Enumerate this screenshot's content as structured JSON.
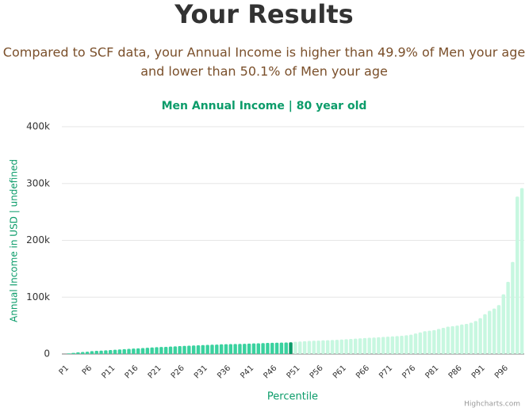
{
  "header": {
    "title": "Your Results",
    "subtitle_line1": "Compared to SCF data, your Annual Income is higher than 49.9% of Men your age",
    "subtitle_line2": "and lower than 50.1% of Men your age"
  },
  "chart_data": {
    "type": "bar",
    "title": "Men Annual Income | 80 year old",
    "x_label": "Percentile",
    "y_label": "Annual Income in USD | undefined",
    "credits": "Highcharts.com",
    "categories": [
      "P1",
      null,
      null,
      null,
      null,
      "P6",
      null,
      null,
      null,
      null,
      "P11",
      null,
      null,
      null,
      null,
      "P16",
      null,
      null,
      null,
      null,
      "P21",
      null,
      null,
      null,
      null,
      "P26",
      null,
      null,
      null,
      null,
      "P31",
      null,
      null,
      null,
      null,
      "P36",
      null,
      null,
      null,
      null,
      "P41",
      null,
      null,
      null,
      null,
      "P46",
      null,
      null,
      null,
      null,
      "P51",
      null,
      null,
      null,
      null,
      "P56",
      null,
      null,
      null,
      null,
      "P61",
      null,
      null,
      null,
      null,
      "P66",
      null,
      null,
      null,
      null,
      "P71",
      null,
      null,
      null,
      null,
      "P76",
      null,
      null,
      null,
      null,
      "P81",
      null,
      null,
      null,
      null,
      "P86",
      null,
      null,
      null,
      null,
      "P91",
      null,
      null,
      null,
      null,
      "P96",
      null,
      null,
      null,
      null
    ],
    "values": [
      0,
      1000,
      2000,
      3000,
      3500,
      4000,
      5000,
      5500,
      6000,
      6500,
      7000,
      7500,
      8000,
      8500,
      9000,
      9500,
      10000,
      10500,
      11000,
      11500,
      12000,
      12300,
      12600,
      13000,
      13500,
      14000,
      14300,
      14600,
      15000,
      15300,
      15600,
      16000,
      16300,
      16600,
      17000,
      17200,
      17400,
      17600,
      17800,
      18000,
      18300,
      18600,
      18900,
      19200,
      19500,
      19700,
      19900,
      20000,
      20200,
      20500,
      21500,
      22000,
      22500,
      23000,
      23300,
      23600,
      24000,
      24300,
      24600,
      25000,
      25500,
      26000,
      26500,
      27000,
      27500,
      28000,
      28500,
      29000,
      29500,
      30000,
      30500,
      31000,
      31500,
      32000,
      33000,
      34000,
      36000,
      38000,
      40000,
      41000,
      42000,
      44000,
      46000,
      48000,
      49000,
      50000,
      52000,
      53000,
      55000,
      58000,
      63000,
      70000,
      76000,
      80000,
      86000,
      105000,
      127000,
      162000,
      277000,
      292000
    ],
    "colors": [
      "#3ad29f",
      "#3ad29f",
      "#3ad29f",
      "#3ad29f",
      "#3ad29f",
      "#3ad29f",
      "#3ad29f",
      "#3ad29f",
      "#3ad29f",
      "#3ad29f",
      "#3ad29f",
      "#3ad29f",
      "#3ad29f",
      "#3ad29f",
      "#3ad29f",
      "#3ad29f",
      "#3ad29f",
      "#3ad29f",
      "#3ad29f",
      "#3ad29f",
      "#3ad29f",
      "#3ad29f",
      "#3ad29f",
      "#3ad29f",
      "#3ad29f",
      "#3ad29f",
      "#3ad29f",
      "#3ad29f",
      "#3ad29f",
      "#3ad29f",
      "#3ad29f",
      "#3ad29f",
      "#3ad29f",
      "#3ad29f",
      "#3ad29f",
      "#3ad29f",
      "#3ad29f",
      "#3ad29f",
      "#3ad29f",
      "#3ad29f",
      "#3ad29f",
      "#3ad29f",
      "#3ad29f",
      "#3ad29f",
      "#3ad29f",
      "#3ad29f",
      "#3ad29f",
      "#3ad29f",
      "#3ad29f",
      "#0c9c6a",
      "#c7f7e0",
      "#c7f7e0",
      "#c7f7e0",
      "#c7f7e0",
      "#c7f7e0",
      "#c7f7e0",
      "#c7f7e0",
      "#c7f7e0",
      "#c7f7e0",
      "#c7f7e0",
      "#c7f7e0",
      "#c7f7e0",
      "#c7f7e0",
      "#c7f7e0",
      "#c7f7e0",
      "#c7f7e0",
      "#c7f7e0",
      "#c7f7e0",
      "#c7f7e0",
      "#c7f7e0",
      "#c7f7e0",
      "#c7f7e0",
      "#c7f7e0",
      "#c7f7e0",
      "#c7f7e0",
      "#c7f7e0",
      "#c7f7e0",
      "#c7f7e0",
      "#c7f7e0",
      "#c7f7e0",
      "#c7f7e0",
      "#c7f7e0",
      "#c7f7e0",
      "#c7f7e0",
      "#c7f7e0",
      "#c7f7e0",
      "#c7f7e0",
      "#c7f7e0",
      "#c7f7e0",
      "#c7f7e0",
      "#c7f7e0",
      "#c7f7e0",
      "#c7f7e0",
      "#c7f7e0",
      "#c7f7e0",
      "#c7f7e0",
      "#c7f7e0",
      "#c7f7e0",
      "#c7f7e0",
      "#c7f7e0"
    ],
    "ylim": [
      0,
      400000
    ],
    "yticks": [
      0,
      {
        "value": 100000,
        "label": "100k"
      },
      {
        "value": 200000,
        "label": "200k"
      },
      {
        "value": 300000,
        "label": "300k"
      },
      {
        "value": 400000,
        "label": "400k"
      }
    ],
    "grid": true
  }
}
